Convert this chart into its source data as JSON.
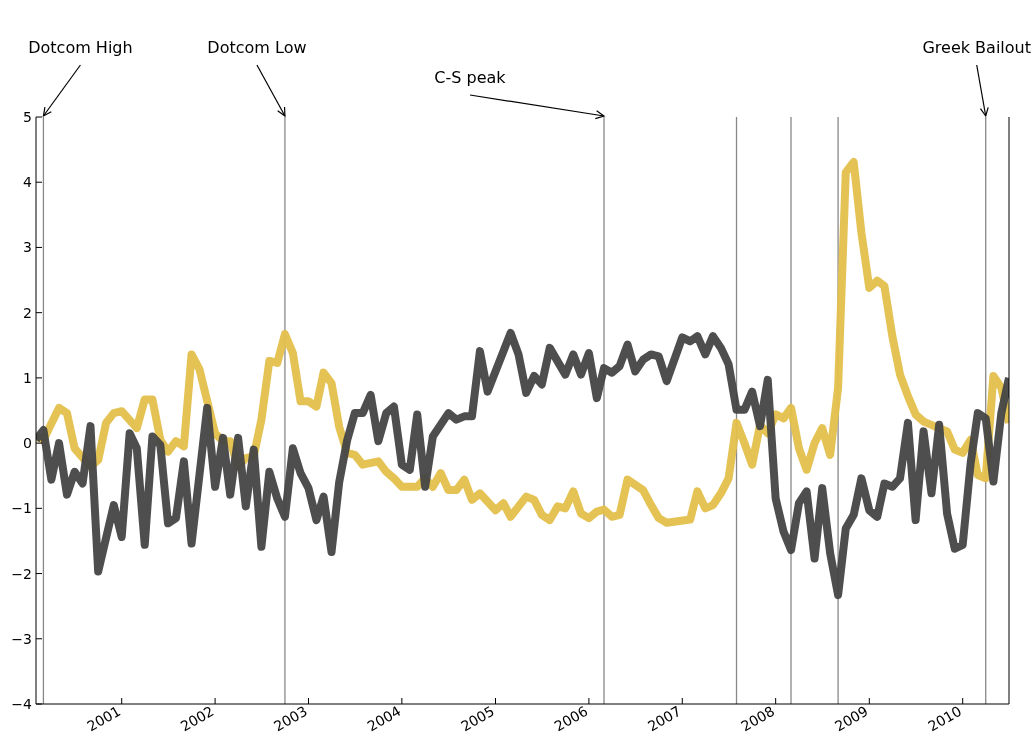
{
  "chart_data": {
    "type": "line",
    "xlim": [
      "2000-02",
      "2010-07"
    ],
    "xticks": [
      "2001",
      "2002",
      "2003",
      "2004",
      "2005",
      "2006",
      "2007",
      "2008",
      "2009",
      "2010"
    ],
    "ylim": [
      -4,
      5
    ],
    "yticks": [
      -4,
      -3,
      -2,
      -1,
      0,
      1,
      2,
      3,
      4,
      5
    ],
    "marker": "none",
    "line_style": "solid",
    "series": [
      {
        "color": "#e3bf4b",
        "x": [
          "2000-02",
          "2000-03",
          "2000-05",
          "2000-06",
          "2000-07",
          "2000-09",
          "2000-10",
          "2000-11",
          "2000-12",
          "2001-01",
          "2001-03",
          "2001-04",
          "2001-05",
          "2001-06",
          "2001-07",
          "2001-08",
          "2001-09",
          "2001-10",
          "2001-11",
          "2002-01",
          "2002-02",
          "2002-03",
          "2002-04",
          "2002-05",
          "2002-06",
          "2002-07",
          "2002-08",
          "2002-09",
          "2002-10",
          "2002-11",
          "2002-12",
          "2003-01",
          "2003-02",
          "2003-03",
          "2003-04",
          "2003-05",
          "2003-06",
          "2003-07",
          "2003-08",
          "2003-10",
          "2003-11",
          "2003-12",
          "2004-01",
          "2004-03",
          "2004-04",
          "2004-05",
          "2004-06",
          "2004-07",
          "2004-08",
          "2004-09",
          "2004-10",
          "2004-11",
          "2005-01",
          "2005-02",
          "2005-03",
          "2005-05",
          "2005-06",
          "2005-07",
          "2005-08",
          "2005-09",
          "2005-10",
          "2005-11",
          "2005-12",
          "2006-01",
          "2006-02",
          "2006-03",
          "2006-04",
          "2006-05",
          "2006-06",
          "2006-08",
          "2006-09",
          "2006-10",
          "2006-11",
          "2007-02",
          "2007-03",
          "2007-04",
          "2007-05",
          "2007-06",
          "2007-07",
          "2007-08",
          "2007-09",
          "2007-10",
          "2007-11",
          "2007-12",
          "2008-01",
          "2008-02",
          "2008-03",
          "2008-04",
          "2008-05",
          "2008-06",
          "2008-07",
          "2008-08",
          "2008-09",
          "2008-10",
          "2008-11",
          "2008-12",
          "2009-01",
          "2009-02",
          "2009-03",
          "2009-04",
          "2009-05",
          "2009-06",
          "2009-07",
          "2009-08",
          "2009-10",
          "2009-11",
          "2009-12",
          "2010-01",
          "2010-02",
          "2010-03",
          "2010-04",
          "2010-05",
          "2010-06",
          "2010-07"
        ],
        "values": [
          0.1,
          0.05,
          0.54,
          0.46,
          -0.08,
          -0.36,
          -0.26,
          0.31,
          0.46,
          0.49,
          0.23,
          0.67,
          0.67,
          0.05,
          -0.13,
          0.03,
          -0.05,
          1.36,
          1.13,
          0.15,
          0.03,
          0.03,
          -0.36,
          -0.23,
          -0.2,
          0.36,
          1.26,
          1.23,
          1.67,
          1.38,
          0.64,
          0.64,
          0.56,
          1.08,
          0.92,
          0.25,
          -0.15,
          -0.18,
          -0.33,
          -0.28,
          -0.44,
          -0.54,
          -0.67,
          -0.67,
          -0.54,
          -0.67,
          -0.46,
          -0.72,
          -0.72,
          -0.56,
          -0.87,
          -0.77,
          -1.03,
          -0.92,
          -1.13,
          -0.82,
          -0.87,
          -1.1,
          -1.18,
          -0.97,
          -1.0,
          -0.74,
          -1.08,
          -1.15,
          -1.05,
          -1.02,
          -1.13,
          -1.1,
          -0.56,
          -0.72,
          -0.95,
          -1.15,
          -1.22,
          -1.17,
          -0.74,
          -1.0,
          -0.95,
          -0.77,
          -0.54,
          0.31,
          0,
          -0.33,
          0.28,
          0.15,
          0.44,
          0.38,
          0.54,
          -0.08,
          -0.41,
          0,
          0.23,
          -0.18,
          0.85,
          4.15,
          4.31,
          3.23,
          2.38,
          2.49,
          2.41,
          1.64,
          1.05,
          0.72,
          0.44,
          0.33,
          0.23,
          0.18,
          -0.1,
          -0.15,
          0.05,
          -0.49,
          -0.54,
          1.03,
          0.85,
          0.31
        ]
      },
      {
        "color": "#454545",
        "x": [
          "2000-02",
          "2000-03",
          "2000-04",
          "2000-05",
          "2000-06",
          "2000-07",
          "2000-08",
          "2000-09",
          "2000-10",
          "2000-12",
          "2001-01",
          "2001-02",
          "2001-03",
          "2001-04",
          "2001-05",
          "2001-06",
          "2001-07",
          "2001-08",
          "2001-09",
          "2001-10",
          "2001-12",
          "2002-01",
          "2002-02",
          "2002-03",
          "2002-04",
          "2002-05",
          "2002-06",
          "2002-07",
          "2002-08",
          "2002-09",
          "2002-10",
          "2002-11",
          "2002-12",
          "2003-01",
          "2003-02",
          "2003-03",
          "2003-04",
          "2003-05",
          "2003-06",
          "2003-07",
          "2003-08",
          "2003-09",
          "2003-10",
          "2003-11",
          "2003-12",
          "2004-01",
          "2004-02",
          "2004-03",
          "2004-04",
          "2004-05",
          "2004-07",
          "2004-08",
          "2004-09",
          "2004-10",
          "2004-11",
          "2004-12",
          "2005-03",
          "2005-04",
          "2005-05",
          "2005-06",
          "2005-07",
          "2005-08",
          "2005-10",
          "2005-11",
          "2005-12",
          "2006-01",
          "2006-02",
          "2006-03",
          "2006-04",
          "2006-05",
          "2006-06",
          "2006-07",
          "2006-08",
          "2006-09",
          "2006-10",
          "2006-11",
          "2007-01",
          "2007-02",
          "2007-03",
          "2007-04",
          "2007-05",
          "2007-06",
          "2007-07",
          "2007-08",
          "2007-09",
          "2007-10",
          "2007-11",
          "2007-12",
          "2008-01",
          "2008-02",
          "2008-03",
          "2008-04",
          "2008-05",
          "2008-06",
          "2008-07",
          "2008-08",
          "2008-09",
          "2008-10",
          "2008-11",
          "2008-12",
          "2009-01",
          "2009-02",
          "2009-03",
          "2009-04",
          "2009-05",
          "2009-06",
          "2009-07",
          "2009-08",
          "2009-09",
          "2009-10",
          "2009-11",
          "2009-12",
          "2010-01",
          "2010-02",
          "2010-03",
          "2010-04",
          "2010-05",
          "2010-06",
          "2010-07"
        ],
        "values": [
          0.05,
          0.2,
          -0.56,
          0,
          -0.79,
          -0.44,
          -0.62,
          0.26,
          -1.97,
          -0.95,
          -1.44,
          0.15,
          -0.08,
          -1.56,
          0.1,
          -0.03,
          -1.23,
          -1.15,
          -0.28,
          -1.54,
          0.54,
          -0.67,
          0.08,
          -0.79,
          0.08,
          -0.97,
          -0.1,
          -1.59,
          -0.44,
          -0.85,
          -1.13,
          -0.08,
          -0.46,
          -0.69,
          -1.18,
          -0.82,
          -1.67,
          -0.6,
          0.04,
          0.46,
          0.46,
          0.74,
          0.03,
          0.46,
          0.56,
          -0.33,
          -0.41,
          0.44,
          -0.67,
          0.1,
          0.46,
          0.36,
          0.41,
          0.41,
          1.41,
          0.79,
          1.69,
          1.36,
          0.77,
          1.03,
          0.9,
          1.46,
          1.05,
          1.36,
          1.05,
          1.38,
          0.69,
          1.15,
          1.08,
          1.18,
          1.51,
          1.1,
          1.28,
          1.36,
          1.33,
          0.95,
          1.62,
          1.56,
          1.64,
          1.36,
          1.64,
          1.46,
          1.21,
          0.51,
          0.51,
          0.79,
          0.26,
          0.97,
          -0.85,
          -1.36,
          -1.64,
          -0.92,
          -0.74,
          -1.77,
          -0.69,
          -1.69,
          -2.33,
          -1.31,
          -1.1,
          -0.54,
          -1.03,
          -1.13,
          -0.62,
          -0.67,
          -0.54,
          0.31,
          -1.18,
          0.18,
          -0.77,
          0.28,
          -1.08,
          -1.62,
          -1.56,
          -0.31,
          0.46,
          0.38,
          -0.59,
          0.46,
          1.0
        ]
      }
    ],
    "ref_lines": [
      {
        "axis": "x",
        "value": "2000-03",
        "label": "Dotcom High",
        "color": "#888888"
      },
      {
        "axis": "x",
        "value": "2002-10",
        "label": "Dotcom Low",
        "color": "#888888"
      },
      {
        "axis": "x",
        "value": "2006-03",
        "label": "C-S peak",
        "color": "#888888"
      },
      {
        "axis": "x",
        "value": "2007-08",
        "color": "#888888"
      },
      {
        "axis": "x",
        "value": "2008-03",
        "color": "#888888"
      },
      {
        "axis": "x",
        "value": "2008-09",
        "color": "#888888"
      },
      {
        "axis": "x",
        "value": "2010-04",
        "label": "Greek Bailout",
        "color": "#888888"
      }
    ]
  }
}
